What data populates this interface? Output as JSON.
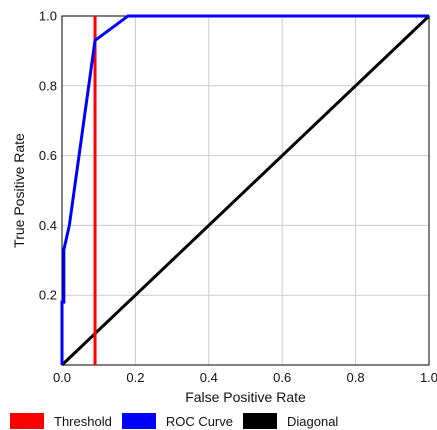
{
  "chart_data": {
    "type": "line",
    "xlabel": "False Positive Rate",
    "ylabel": "True Positive Rate",
    "xlim": [
      0.0,
      1.0
    ],
    "ylim": [
      0.0,
      1.0
    ],
    "x_ticks": [
      "0.0",
      "0.2",
      "0.4",
      "0.6",
      "0.8",
      "1.0"
    ],
    "y_ticks": [
      "0.2",
      "0.4",
      "0.6",
      "0.8",
      "1.0"
    ],
    "grid": true,
    "legend_position": "bottom",
    "series": [
      {
        "name": "Threshold",
        "color": "#ff0000",
        "style": "vertical-line",
        "x": [
          0.09,
          0.09
        ],
        "y": [
          0.0,
          1.0
        ]
      },
      {
        "name": "ROC Curve",
        "color": "#0000ff",
        "x": [
          0.0,
          0.0,
          0.005,
          0.005,
          0.02,
          0.09,
          0.18,
          1.0
        ],
        "y": [
          0.0,
          0.18,
          0.18,
          0.33,
          0.4,
          0.93,
          1.0,
          1.0
        ]
      },
      {
        "name": "Diagonal",
        "color": "#000000",
        "x": [
          0.0,
          1.0
        ],
        "y": [
          0.0,
          1.0
        ]
      }
    ]
  }
}
